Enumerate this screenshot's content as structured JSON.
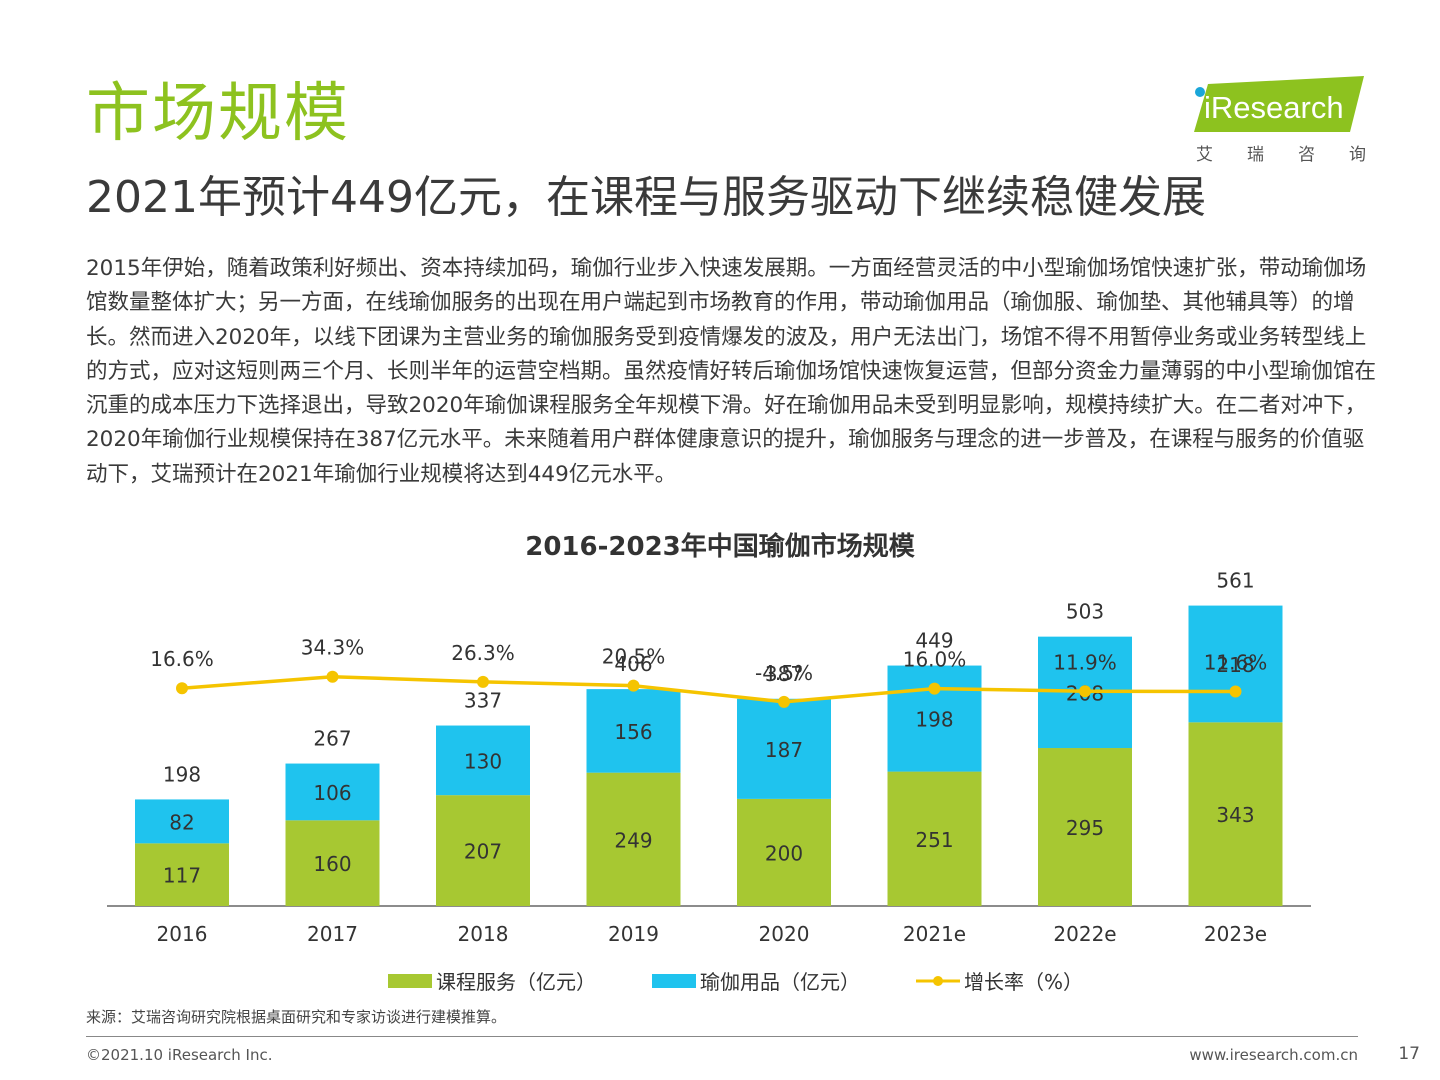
{
  "header": {
    "section_title": "市场规模",
    "subtitle": "2021年预计449亿元，在课程与服务驱动下继续稳健发展",
    "body": "2015年伊始，随着政策利好频出、资本持续加码，瑜伽行业步入快速发展期。一方面经营灵活的中小型瑜伽场馆快速扩张，带动瑜伽场馆数量整体扩大；另一方面，在线瑜伽服务的出现在用户端起到市场教育的作用，带动瑜伽用品（瑜伽服、瑜伽垫、其他辅具等）的增长。然而进入2020年，以线下团课为主营业务的瑜伽服务受到疫情爆发的波及，用户无法出门，场馆不得不用暂停业务或业务转型线上的方式，应对这短则两三个月、长则半年的运营空档期。虽然疫情好转后瑜伽场馆快速恢复运营，但部分资金力量薄弱的中小型瑜伽馆在沉重的成本压力下选择退出，导致2020年瑜伽课程服务全年规模下滑。好在瑜伽用品未受到明显影响，规模持续扩大。在二者对冲下，2020年瑜伽行业规模保持在387亿元水平。未来随着用户群体健康意识的提升，瑜伽服务与理念的进一步普及，在课程与服务的价值驱动下，艾瑞预计在2021年瑜伽行业规模将达到449亿元水平。"
  },
  "logo": {
    "brand": "iResearch",
    "cn_chars": [
      "艾",
      "瑞",
      "咨",
      "询"
    ],
    "color": "#8dc21f"
  },
  "chart_data": {
    "type": "bar",
    "stacked": true,
    "title": "2016-2023年中国瑜伽市场规模",
    "categories": [
      "2016",
      "2017",
      "2018",
      "2019",
      "2020",
      "2021e",
      "2022e",
      "2023e"
    ],
    "series": [
      {
        "name": "课程服务（亿元）",
        "color": "#a7c832",
        "values": [
          117,
          160,
          207,
          249,
          200,
          251,
          295,
          343
        ]
      },
      {
        "name": "瑜伽用品（亿元）",
        "color": "#1fc3ee",
        "values": [
          82,
          106,
          130,
          156,
          187,
          198,
          208,
          218
        ]
      }
    ],
    "totals": [
      "198",
      "267",
      "337",
      "406",
      "387",
      "449",
      "503",
      "561"
    ],
    "growth": {
      "name": "增长率（%）",
      "type": "line",
      "color": "#f5c400",
      "values": [
        16.6,
        34.3,
        26.3,
        20.5,
        -4.5,
        16.0,
        11.9,
        11.6
      ],
      "labels": [
        "16.6%",
        "34.3%",
        "26.3%",
        "20.5%",
        "-4.5%",
        "16.0%",
        "11.9%",
        "11.6%"
      ]
    },
    "legend_position": "bottom",
    "grid": false
  },
  "footer": {
    "source": "来源：艾瑞咨询研究院根据桌面研究和专家访谈进行建模推算。",
    "copyright": "©2021.10 iResearch Inc.",
    "website": "www.iresearch.com.cn",
    "page": "17"
  }
}
